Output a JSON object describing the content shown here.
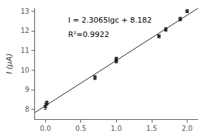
{
  "chart_data": {
    "type": "scatter",
    "ylabel": "I (μA)",
    "annotations": [
      "I = 2.3065lgc + 8.182",
      "R²=0.9922"
    ],
    "xlim": [
      -0.15,
      2.15
    ],
    "ylim": [
      7.5,
      13.15
    ],
    "xticks": [
      {
        "value": 0,
        "label": "0.0"
      },
      0.5,
      {
        "value": 1,
        "label": "1.0"
      },
      1.5,
      {
        "value": 2,
        "label": "2.0"
      }
    ],
    "yticks": [
      8,
      9,
      10,
      11,
      12,
      13
    ],
    "grid": false,
    "series": [
      {
        "type": "line",
        "color": "#1a1a1a",
        "x": [
          -0.15,
          2.15
        ],
        "values": [
          7.836025,
          13.140975
        ]
      },
      {
        "type": "scatter",
        "color": "#1a1a1a",
        "marker": "square",
        "x": [
          0.0,
          0.02,
          0.699,
          1.0,
          1.0,
          1.602,
          1.699,
          1.903,
          2.0
        ],
        "values": [
          8.15,
          8.32,
          9.62,
          10.46,
          10.56,
          11.72,
          12.07,
          12.6,
          13.0
        ],
        "yerr": [
          0.15,
          0.1,
          0.1,
          0.1,
          0.1,
          0.07,
          0.09,
          0.09,
          0.07
        ]
      }
    ]
  }
}
